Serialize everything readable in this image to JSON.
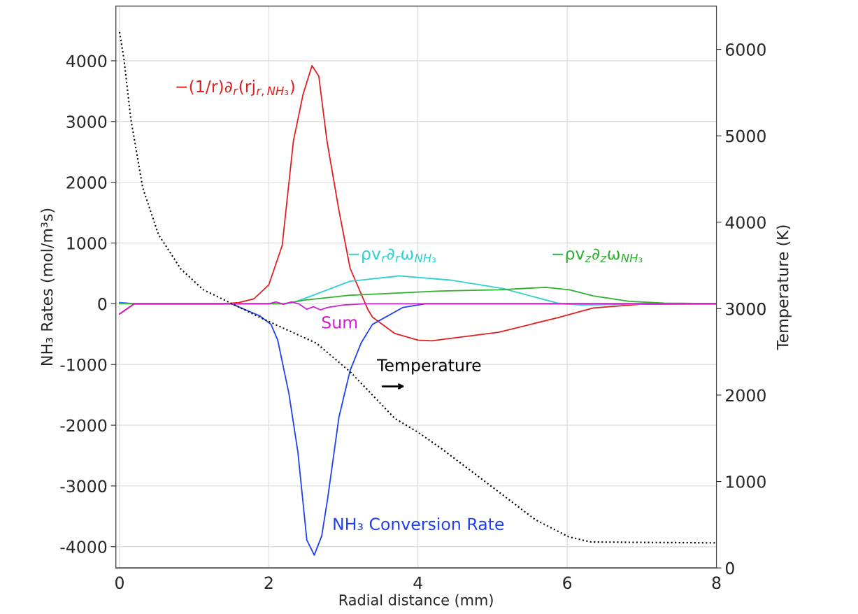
{
  "chart_data": {
    "type": "line",
    "xlabel": "Radial distance (mm)",
    "ylabel": "NH₃ Rates (mol/m³s)",
    "y2label": "Temperature (K)",
    "xlim": [
      -0.05,
      8
    ],
    "xticks": [
      0,
      2,
      4,
      6,
      8
    ],
    "ylim": [
      -4350,
      4900
    ],
    "yticks": [
      4000,
      3000,
      2000,
      1000,
      0,
      -1000,
      -2000,
      -3000,
      -4000
    ],
    "y2lim": [
      0,
      6500
    ],
    "y2ticks": [
      0,
      1000,
      2000,
      3000,
      4000,
      5000,
      6000
    ],
    "grid": true,
    "line_style": "solid",
    "series": [
      {
        "name": "−(1/r)∂$_{r}$(rj$_{r,NH₃}$)",
        "color": "#e02020",
        "x": [
          0,
          0.2,
          1.4,
          1.6,
          1.8,
          2.0,
          2.18,
          2.33,
          2.46,
          2.58,
          2.67,
          2.78,
          2.94,
          3.09,
          3.33,
          3.39,
          3.69,
          4.0,
          4.18,
          5.08,
          5.87,
          6.35,
          6.98,
          8
        ],
        "values": [
          -170,
          0,
          0,
          20,
          80,
          310,
          960,
          2680,
          3450,
          3920,
          3750,
          2680,
          1540,
          585,
          -100,
          -220,
          -490,
          -600,
          -610,
          -470,
          -230,
          -70,
          -10,
          0
        ]
      },
      {
        "name": "NH₃ Conversion Rate",
        "color": "#2040f0",
        "x": [
          0,
          0.2,
          1.5,
          1.88,
          2.03,
          2.12,
          2.27,
          2.39,
          2.51,
          2.61,
          2.71,
          2.79,
          2.94,
          3.09,
          3.24,
          3.39,
          3.8,
          4.1,
          8
        ],
        "values": [
          20,
          0,
          0,
          -200,
          -340,
          -600,
          -1480,
          -2440,
          -3890,
          -4140,
          -3820,
          -3200,
          -1870,
          -1100,
          -640,
          -340,
          -60,
          0,
          0
        ]
      },
      {
        "name": "−ρv$_{r}$∂$_{r}$ω$_{NH₃}$",
        "color": "#30d0d0",
        "x": [
          0,
          0.2,
          2.2,
          2.33,
          2.64,
          3.09,
          3.69,
          3.74,
          4.43,
          5.14,
          5.87,
          6.18,
          6.83,
          7.2,
          8
        ],
        "values": [
          10,
          0,
          0,
          20,
          160,
          370,
          450,
          460,
          390,
          250,
          10,
          -20,
          -10,
          0,
          0
        ]
      },
      {
        "name": "−ρv$_{z}$∂$_{z}$ω$_{NH₃}$",
        "color": "#30b030",
        "x": [
          0,
          2.2,
          2.48,
          3.09,
          4.3,
          5.08,
          5.71,
          6.03,
          6.35,
          6.83,
          7.3,
          8
        ],
        "values": [
          0,
          0,
          60,
          140,
          210,
          230,
          270,
          230,
          130,
          40,
          10,
          0
        ]
      },
      {
        "name": "Sum",
        "color": "#d020d0",
        "x": [
          0,
          0.2,
          2.0,
          2.1,
          2.2,
          2.3,
          2.4,
          2.51,
          2.6,
          2.69,
          2.79,
          3.0,
          3.3,
          8
        ],
        "values": [
          -170,
          0,
          0,
          30,
          -10,
          30,
          0,
          -90,
          -50,
          -100,
          -60,
          -20,
          0,
          0
        ]
      },
      {
        "name": "Temperature",
        "color": "#000000",
        "axis": "y2",
        "line_style": "dotted",
        "x": [
          0,
          0.06,
          0.15,
          0.31,
          0.52,
          0.82,
          1.12,
          1.5,
          1.88,
          2.18,
          2.64,
          3.09,
          3.69,
          4.0,
          4.3,
          4.96,
          5.57,
          6.02,
          6.32,
          8
        ],
        "values": [
          6200,
          5880,
          5200,
          4400,
          3860,
          3460,
          3220,
          3060,
          2900,
          2780,
          2600,
          2270,
          1730,
          1570,
          1390,
          960,
          560,
          360,
          300,
          290
        ]
      }
    ]
  }
}
